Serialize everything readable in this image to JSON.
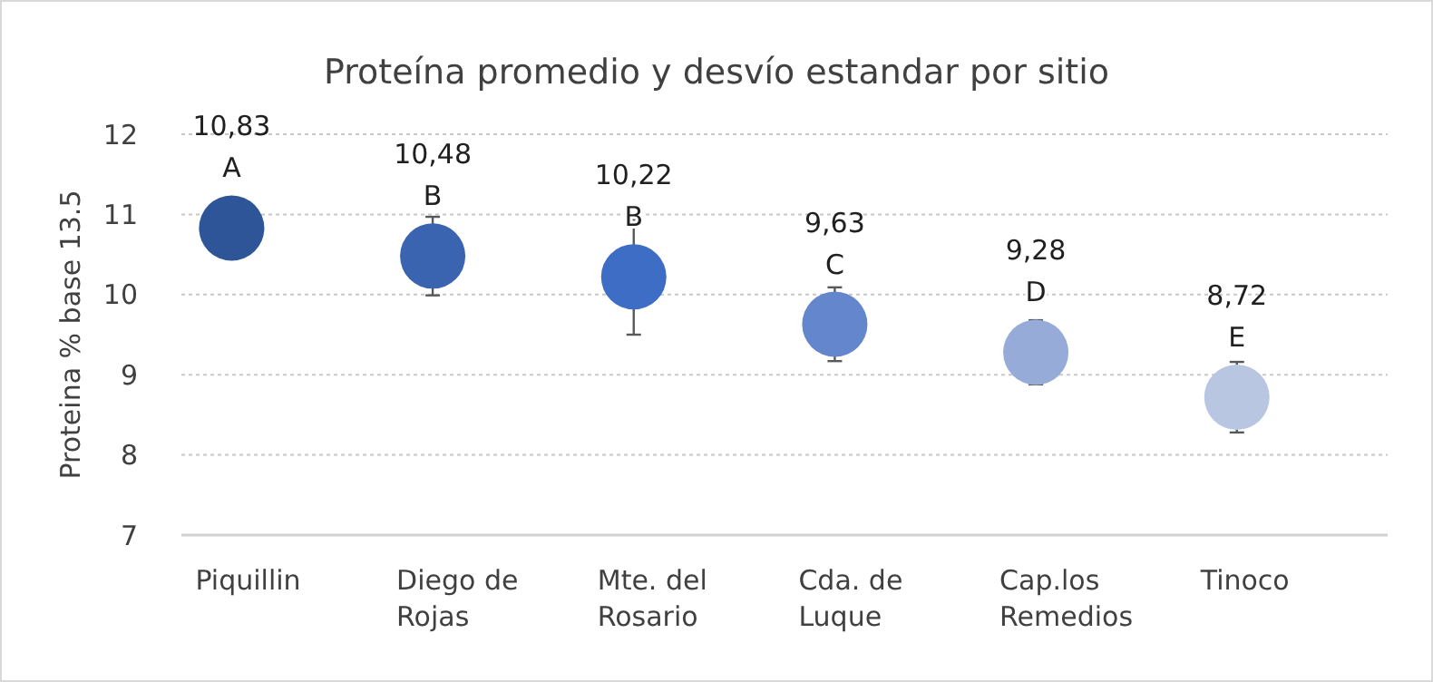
{
  "chart_data": {
    "type": "scatter",
    "title": "Proteína promedio y desvío estandar por sitio",
    "ylabel": "Proteina % base 13.5",
    "categories": [
      "Piquillin",
      "Diego de Rojas",
      "Mte. del Rosario",
      "Cda. de Luque",
      "Cap.los Remedios",
      "Tinoco"
    ],
    "values": [
      10.83,
      10.48,
      10.22,
      9.63,
      9.28,
      8.72
    ],
    "errors": [
      null,
      0.49,
      0.72,
      0.46,
      0.4,
      0.44
    ],
    "colors": [
      "#2e5597",
      "#3a63b0",
      "#3d6dc4",
      "#6486cc",
      "#97abd8",
      "#b9c6e2"
    ],
    "value_labels": [
      "10,83",
      "10,48",
      "10,22",
      "9,63",
      "9,28",
      "8,72"
    ],
    "annotations": [
      "A",
      "B",
      "B",
      "C",
      "D",
      "E"
    ],
    "ylim": [
      7,
      12
    ],
    "yticks": [
      7,
      8,
      9,
      10,
      11,
      12
    ],
    "grid": "y",
    "marker": "circle"
  }
}
